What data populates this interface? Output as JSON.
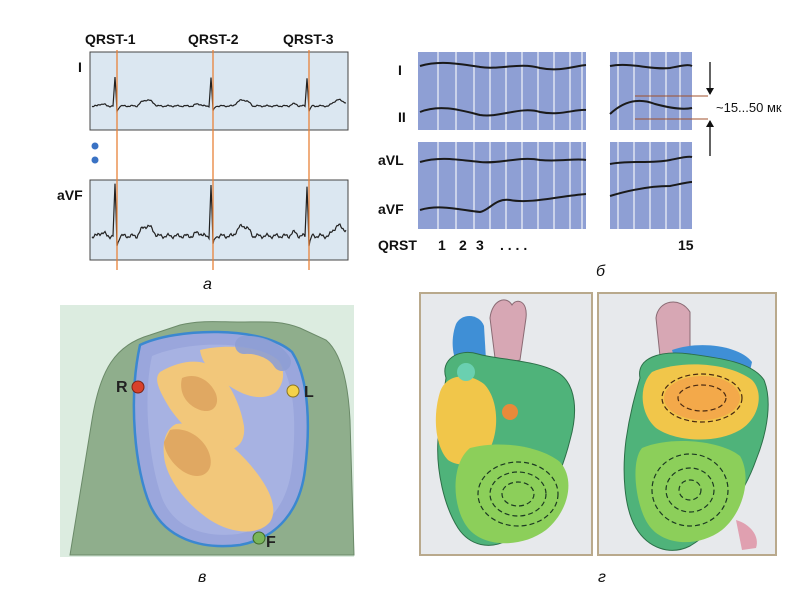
{
  "panel_a": {
    "markers": [
      "QRST-1",
      "QRST-2",
      "QRST-3"
    ],
    "lead_top": "I",
    "lead_bottom": "aVF",
    "caption": "а"
  },
  "panel_b": {
    "leads": [
      "I",
      "II",
      "aVL",
      "aVF"
    ],
    "qrst_label": "QRST",
    "seq": [
      "1",
      "2",
      "3",
      ". . . .",
      "15"
    ],
    "amplitude": "~15...50 мк",
    "caption": "б"
  },
  "panel_c": {
    "electrodes": [
      "R",
      "L",
      "F"
    ],
    "caption": "в"
  },
  "panel_d": {
    "caption": "г"
  },
  "colors": {
    "ecg_bg": "#dbe7f1",
    "marker": "#e8823a",
    "blue_panel": "#8e9fd4",
    "body": "#8fae8c",
    "torso_blue": "#9aa6dc",
    "torso_yellow": "#f2c77a",
    "electrode_red": "#d9412b",
    "electrode_yellow": "#f4d24a",
    "electrode_green": "#7ab55a"
  }
}
